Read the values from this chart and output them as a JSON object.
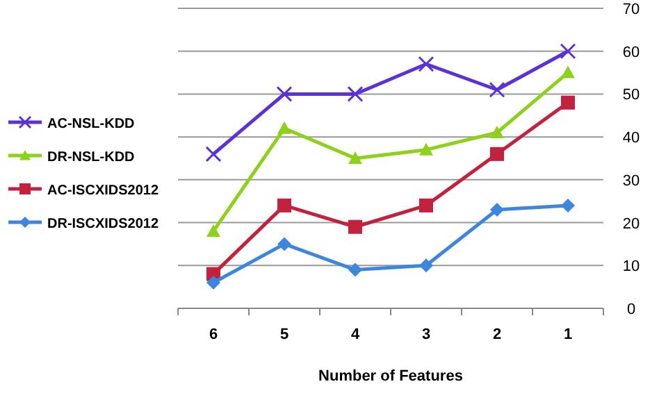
{
  "chart_data": {
    "type": "line",
    "xlabel": "Number of Features",
    "categories": [
      "6",
      "5",
      "4",
      "3",
      "2",
      "1"
    ],
    "series": [
      {
        "name": "AC-NSL-KDD",
        "color": "#5b32d8",
        "marker": "cross",
        "values": [
          36,
          50,
          50,
          57,
          51,
          60
        ]
      },
      {
        "name": "DR-NSL-KDD",
        "color": "#8ed11a",
        "marker": "triangle",
        "values": [
          18,
          42,
          35,
          37,
          41,
          55
        ]
      },
      {
        "name": "AC-ISCXIDS2012",
        "color": "#c3213d",
        "marker": "square",
        "values": [
          8,
          24,
          19,
          24,
          36,
          48
        ]
      },
      {
        "name": "DR-ISCXIDS2012",
        "color": "#3d86e0",
        "marker": "diamond",
        "values": [
          6,
          15,
          9,
          10,
          23,
          24
        ]
      }
    ],
    "ylim": [
      0,
      70
    ],
    "yticks": [
      0,
      10,
      20,
      30,
      40,
      50,
      60,
      70
    ],
    "grid": "y",
    "legend": "left"
  }
}
